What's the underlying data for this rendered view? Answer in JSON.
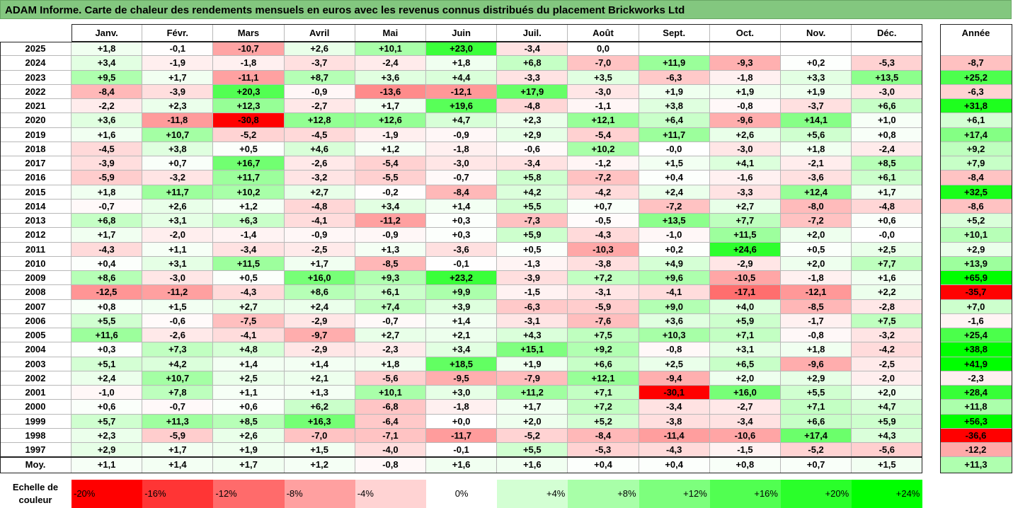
{
  "chart_data": {
    "type": "heatmap",
    "title": "ADAM Informe. Carte de chaleur des rendements mensuels en euros avec les revenus connus distribués du placement Brickworks Ltd",
    "columns": [
      "Janv.",
      "Févr.",
      "Mars",
      "Avril",
      "Mai",
      "Juin",
      "Juil.",
      "Août",
      "Sept.",
      "Oct.",
      "Nov.",
      "Déc."
    ],
    "annual_header": "Année",
    "rows": [
      {
        "year": "2025",
        "values": [
          "+1,8",
          "-0,1",
          "-10,7",
          "+2,6",
          "+10,1",
          "+23,0",
          "-3,4",
          "0,0",
          "",
          "",
          "",
          ""
        ],
        "annual": ""
      },
      {
        "year": "2024",
        "values": [
          "+3,4",
          "-1,9",
          "-1,8",
          "-3,7",
          "-2,4",
          "+1,8",
          "+6,8",
          "-7,0",
          "+11,9",
          "-9,3",
          "+0,2",
          "-5,3"
        ],
        "annual": "-8,7"
      },
      {
        "year": "2023",
        "values": [
          "+9,5",
          "+1,7",
          "-11,1",
          "+8,7",
          "+3,6",
          "+4,4",
          "-3,3",
          "+3,5",
          "-6,3",
          "-1,8",
          "+3,3",
          "+13,5"
        ],
        "annual": "+25,2"
      },
      {
        "year": "2022",
        "values": [
          "-8,4",
          "-3,9",
          "+20,3",
          "-0,9",
          "-13,6",
          "-12,1",
          "+17,9",
          "-3,0",
          "+1,9",
          "+1,9",
          "+1,9",
          "-3,0"
        ],
        "annual": "-6,3"
      },
      {
        "year": "2021",
        "values": [
          "-2,2",
          "+2,3",
          "+12,3",
          "-2,7",
          "+1,7",
          "+19,6",
          "-4,8",
          "-1,1",
          "+3,8",
          "-0,8",
          "-3,7",
          "+6,6"
        ],
        "annual": "+31,8"
      },
      {
        "year": "2020",
        "values": [
          "+3,6",
          "-11,8",
          "-30,8",
          "+12,8",
          "+12,6",
          "+4,7",
          "+2,3",
          "+12,1",
          "+6,4",
          "-9,6",
          "+14,1",
          "+1,0"
        ],
        "annual": "+6,1"
      },
      {
        "year": "2019",
        "values": [
          "+1,6",
          "+10,7",
          "-5,2",
          "-4,5",
          "-1,9",
          "-0,9",
          "+2,9",
          "-5,4",
          "+11,7",
          "+2,6",
          "+5,6",
          "+0,8"
        ],
        "annual": "+17,4"
      },
      {
        "year": "2018",
        "values": [
          "-4,5",
          "+3,8",
          "+0,5",
          "+4,6",
          "+1,2",
          "-1,8",
          "-0,6",
          "+10,2",
          "-0,0",
          "-3,0",
          "+1,8",
          "-2,4"
        ],
        "annual": "+9,2"
      },
      {
        "year": "2017",
        "values": [
          "-3,9",
          "+0,7",
          "+16,7",
          "-2,6",
          "-5,4",
          "-3,0",
          "-3,4",
          "-1,2",
          "+1,5",
          "+4,1",
          "-2,1",
          "+8,5"
        ],
        "annual": "+7,9"
      },
      {
        "year": "2016",
        "values": [
          "-5,9",
          "-3,2",
          "+11,7",
          "-3,2",
          "-5,5",
          "-0,7",
          "+5,8",
          "-7,2",
          "+0,4",
          "-1,6",
          "-3,6",
          "+6,1"
        ],
        "annual": "-8,4"
      },
      {
        "year": "2015",
        "values": [
          "+1,8",
          "+11,7",
          "+10,2",
          "+2,7",
          "-0,2",
          "-8,4",
          "+4,2",
          "-4,2",
          "+2,4",
          "-3,3",
          "+12,4",
          "+1,7"
        ],
        "annual": "+32,5"
      },
      {
        "year": "2014",
        "values": [
          "-0,7",
          "+2,6",
          "+1,2",
          "-4,8",
          "+3,4",
          "+1,4",
          "+5,5",
          "+0,7",
          "-7,2",
          "+2,7",
          "-8,0",
          "-4,8"
        ],
        "annual": "-8,6"
      },
      {
        "year": "2013",
        "values": [
          "+6,8",
          "+3,1",
          "+6,3",
          "-4,1",
          "-11,2",
          "+0,3",
          "-7,3",
          "-0,5",
          "+13,5",
          "+7,7",
          "-7,2",
          "+0,6"
        ],
        "annual": "+5,2"
      },
      {
        "year": "2012",
        "values": [
          "+1,7",
          "-2,0",
          "-1,4",
          "-0,9",
          "-0,9",
          "+0,3",
          "+5,9",
          "-4,3",
          "-1,0",
          "+11,5",
          "+2,0",
          "-0,0"
        ],
        "annual": "+10,1"
      },
      {
        "year": "2011",
        "values": [
          "-4,3",
          "+1,1",
          "-3,4",
          "-2,5",
          "+1,3",
          "-3,6",
          "+0,5",
          "-10,3",
          "+0,2",
          "+24,6",
          "+0,5",
          "+2,5"
        ],
        "annual": "+2,9"
      },
      {
        "year": "2010",
        "values": [
          "+0,4",
          "+3,1",
          "+11,5",
          "+1,7",
          "-8,5",
          "-0,1",
          "-1,3",
          "-3,8",
          "+4,9",
          "-2,9",
          "+2,0",
          "+7,7"
        ],
        "annual": "+13,9"
      },
      {
        "year": "2009",
        "values": [
          "+8,6",
          "-3,0",
          "+0,5",
          "+16,0",
          "+9,3",
          "+23,2",
          "-3,9",
          "+7,2",
          "+9,6",
          "-10,5",
          "-1,8",
          "+1,6"
        ],
        "annual": "+65,9"
      },
      {
        "year": "2008",
        "values": [
          "-12,5",
          "-11,2",
          "-4,3",
          "+8,6",
          "+6,1",
          "+9,9",
          "-1,5",
          "-3,1",
          "-4,1",
          "-17,1",
          "-12,1",
          "+2,2"
        ],
        "annual": "-35,7"
      },
      {
        "year": "2007",
        "values": [
          "+0,8",
          "+1,5",
          "+2,7",
          "+2,4",
          "+7,4",
          "+3,9",
          "-6,3",
          "-5,9",
          "+9,0",
          "+4,0",
          "-8,5",
          "-2,8"
        ],
        "annual": "+7,0"
      },
      {
        "year": "2006",
        "values": [
          "+5,5",
          "-0,6",
          "-7,5",
          "-2,9",
          "-0,7",
          "+1,4",
          "-3,1",
          "-7,6",
          "+3,6",
          "+5,9",
          "-1,7",
          "+7,5"
        ],
        "annual": "-1,6"
      },
      {
        "year": "2005",
        "values": [
          "+11,6",
          "-2,6",
          "-4,1",
          "-9,7",
          "+2,7",
          "+2,1",
          "+4,3",
          "+7,5",
          "+10,3",
          "+7,1",
          "-0,8",
          "-3,2"
        ],
        "annual": "+25,4"
      },
      {
        "year": "2004",
        "values": [
          "+0,3",
          "+7,3",
          "+4,8",
          "-2,9",
          "-2,3",
          "+3,4",
          "+15,1",
          "+9,2",
          "-0,8",
          "+3,1",
          "+1,8",
          "-4,2"
        ],
        "annual": "+38,8"
      },
      {
        "year": "2003",
        "values": [
          "+5,1",
          "+4,2",
          "+1,4",
          "+1,4",
          "+1,8",
          "+18,5",
          "+1,9",
          "+6,6",
          "+2,5",
          "+6,5",
          "-9,6",
          "-2,5"
        ],
        "annual": "+41,9"
      },
      {
        "year": "2002",
        "values": [
          "+2,4",
          "+10,7",
          "+2,5",
          "+2,1",
          "-5,6",
          "-9,5",
          "-7,9",
          "+12,1",
          "-9,4",
          "+2,0",
          "+2,9",
          "-2,0"
        ],
        "annual": "-2,3"
      },
      {
        "year": "2001",
        "values": [
          "-1,0",
          "+7,8",
          "+1,1",
          "+1,3",
          "+10,1",
          "+3,0",
          "+11,2",
          "+7,1",
          "-30,1",
          "+16,0",
          "+5,5",
          "+2,0"
        ],
        "annual": "+28,4"
      },
      {
        "year": "2000",
        "values": [
          "+0,6",
          "-0,7",
          "+0,6",
          "+6,2",
          "-6,8",
          "-1,8",
          "+1,7",
          "+7,2",
          "-3,4",
          "-2,7",
          "+7,1",
          "+4,7"
        ],
        "annual": "+11,8"
      },
      {
        "year": "1999",
        "values": [
          "+5,7",
          "+11,3",
          "+8,5",
          "+16,3",
          "-6,4",
          "+0,0",
          "+2,0",
          "+5,2",
          "-3,8",
          "-3,4",
          "+6,6",
          "+5,9"
        ],
        "annual": "+56,3"
      },
      {
        "year": "1998",
        "values": [
          "+2,3",
          "-5,9",
          "+2,6",
          "-7,0",
          "-7,1",
          "-11,7",
          "-5,2",
          "-8,4",
          "-11,4",
          "-10,6",
          "+17,4",
          "+4,3"
        ],
        "annual": "-36,6"
      },
      {
        "year": "1997",
        "values": [
          "+2,9",
          "+1,7",
          "+1,9",
          "+1,5",
          "-4,0",
          "-0,1",
          "+5,5",
          "-5,3",
          "-4,3",
          "-1,5",
          "-5,2",
          "-5,6"
        ],
        "annual": "-12,2"
      }
    ],
    "average_row": {
      "label": "Moy.",
      "values": [
        "+1,1",
        "+1,4",
        "+1,7",
        "+1,2",
        "-0,8",
        "+1,6",
        "+1,6",
        "+0,4",
        "+0,4",
        "+0,8",
        "+0,7",
        "+1,5"
      ],
      "annual": "+11,3"
    },
    "legend": {
      "label": "Echelle de couleur",
      "stops": [
        "-20%",
        "-16%",
        "-12%",
        "-8%",
        "-4%",
        "0%",
        "+4%",
        "+8%",
        "+12%",
        "+16%",
        "+20%",
        "+24%"
      ],
      "colors": [
        "#ff0000",
        "#ff3535",
        "#ff6b6b",
        "#ffa0a0",
        "#ffd3d3",
        "#ffffff",
        "#d3ffd3",
        "#a8ffa8",
        "#7dff7d",
        "#51ff51",
        "#2aff2a",
        "#00ff00"
      ]
    },
    "colors": {
      "negative_max": "#ff0000",
      "neutral": "#ffffff",
      "positive_max": "#00ff00",
      "title_bar": "#83c77f"
    }
  }
}
